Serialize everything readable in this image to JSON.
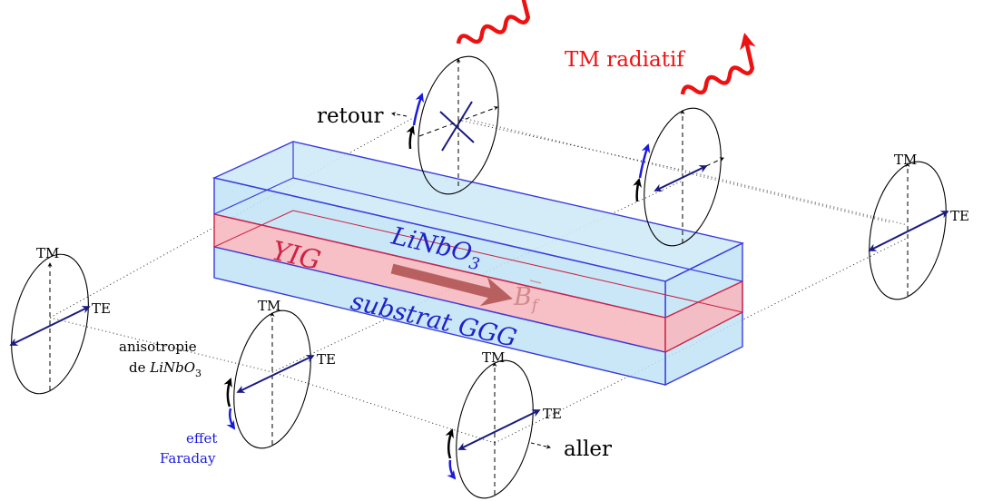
{
  "labels": {
    "yig": "YIG",
    "linbo3": "LiNbO",
    "linbo3_sub": "3",
    "substrat": "substrat GGG",
    "bf": "B",
    "bf_sub": "f",
    "tm_radiatif": "TM radiatif",
    "retour": "retour",
    "aller": "aller",
    "anisotropie_line1": "anisotropie",
    "anisotropie_line2_prefix": "de ",
    "anisotropie_line2_it": "LiNbO",
    "anisotropie_line2_sub": "3",
    "effet_line1": "effet",
    "effet_line2": "Faraday"
  },
  "ellipse_labels": {
    "tm": "TM",
    "te": "TE"
  },
  "colors": {
    "blue_line": "#3a3adf",
    "blue_fill": "#bfe3f5",
    "red_line": "#cc2244",
    "red_fill": "#f6b8c0",
    "arrow_brown": "#b86060",
    "navy": "#1a1a80",
    "radiative_red": "#ee1111",
    "faraday_blue": "#1a1adf"
  }
}
